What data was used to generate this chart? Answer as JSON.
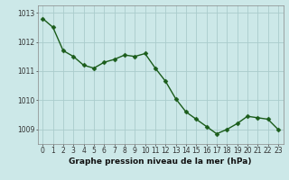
{
  "x": [
    0,
    1,
    2,
    3,
    4,
    5,
    6,
    7,
    8,
    9,
    10,
    11,
    12,
    13,
    14,
    15,
    16,
    17,
    18,
    19,
    20,
    21,
    22,
    23
  ],
  "y": [
    1012.8,
    1012.5,
    1011.7,
    1011.5,
    1011.2,
    1011.1,
    1011.3,
    1011.4,
    1011.55,
    1011.5,
    1011.6,
    1011.1,
    1010.65,
    1010.05,
    1009.6,
    1009.35,
    1009.1,
    1008.85,
    1009.0,
    1009.2,
    1009.45,
    1009.4,
    1009.35,
    1009.0
  ],
  "line_color": "#1a5c1a",
  "marker_color": "#1a5c1a",
  "bg_color": "#cce8e8",
  "grid_color": "#aacccc",
  "xlabel": "Graphe pression niveau de la mer (hPa)",
  "ylim_min": 1008.5,
  "ylim_max": 1013.25,
  "yticks": [
    1009,
    1010,
    1011,
    1012,
    1013
  ],
  "xticks": [
    0,
    1,
    2,
    3,
    4,
    5,
    6,
    7,
    8,
    9,
    10,
    11,
    12,
    13,
    14,
    15,
    16,
    17,
    18,
    19,
    20,
    21,
    22,
    23
  ],
  "xlabel_fontsize": 6.5,
  "tick_fontsize": 5.5,
  "line_width": 1.0,
  "marker_size": 2.5
}
